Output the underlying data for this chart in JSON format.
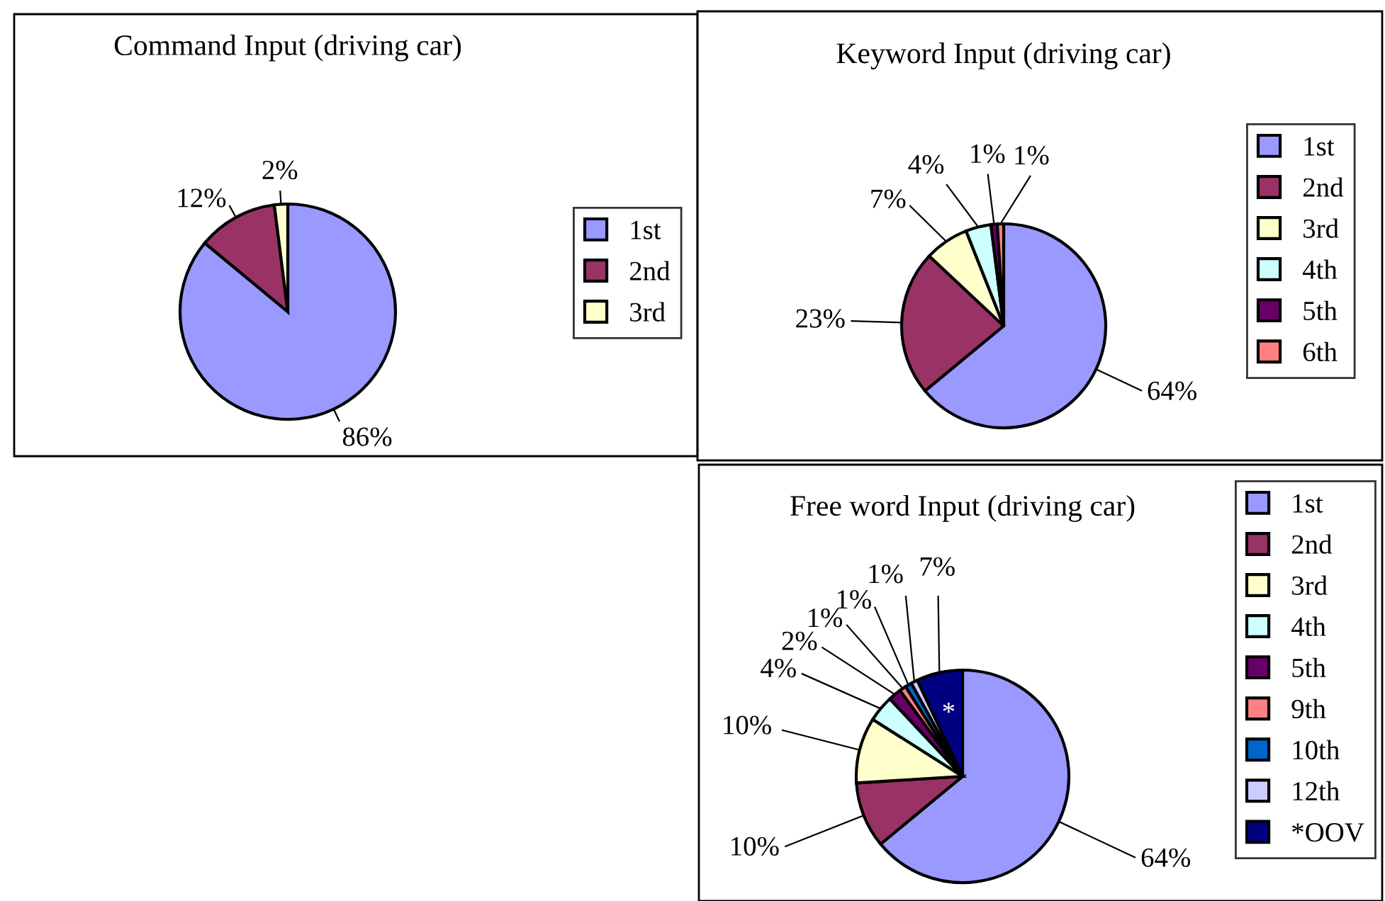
{
  "chart_data": [
    {
      "type": "pie",
      "title": "Command Input (driving car)",
      "categories": [
        "1st",
        "2nd",
        "3rd"
      ],
      "values": [
        86,
        12,
        2
      ],
      "value_labels": [
        "86%",
        "12%",
        "2%"
      ],
      "colors": [
        "#9999ff",
        "#993366",
        "#ffffcc"
      ],
      "legend": "right"
    },
    {
      "type": "pie",
      "title": "Keyword Input (driving car)",
      "categories": [
        "1st",
        "2nd",
        "3rd",
        "4th",
        "5th",
        "6th"
      ],
      "values": [
        64,
        23,
        7,
        4,
        1,
        1
      ],
      "value_labels": [
        "64%",
        "23%",
        "7%",
        "4%",
        "1%",
        "1%"
      ],
      "colors": [
        "#9999ff",
        "#993366",
        "#ffffcc",
        "#ccffff",
        "#660066",
        "#ff8080"
      ],
      "legend": "right"
    },
    {
      "type": "pie",
      "title": "Free word Input (driving car)",
      "categories": [
        "1st",
        "2nd",
        "3rd",
        "4th",
        "5th",
        "9th",
        "10th",
        "12th",
        "*OOV"
      ],
      "values": [
        64,
        10,
        10,
        4,
        2,
        1,
        1,
        1,
        7
      ],
      "value_labels": [
        "64%",
        "10%",
        "10%",
        "4%",
        "2%",
        "1%",
        "1%",
        "1%",
        "7%"
      ],
      "colors": [
        "#9999ff",
        "#993366",
        "#ffffcc",
        "#ccffff",
        "#660066",
        "#ff8080",
        "#0066cc",
        "#ccccff",
        "#000080"
      ],
      "legend": "right",
      "annotations": [
        "*"
      ]
    }
  ]
}
